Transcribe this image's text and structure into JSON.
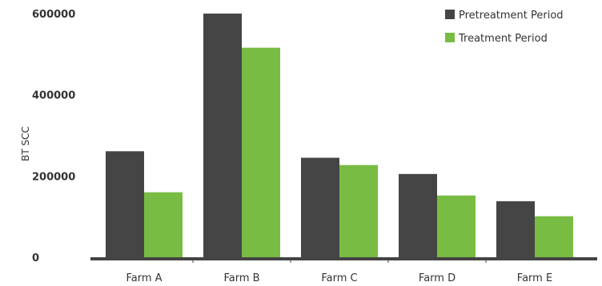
{
  "chart_data": {
    "type": "bar",
    "categories": [
      "Farm A",
      "Farm B",
      "Farm C",
      "Farm D",
      "Farm E"
    ],
    "series": [
      {
        "name": "Pretreatment Period",
        "color": "#454545",
        "values": [
          261000,
          600000,
          245000,
          205000,
          138000
        ]
      },
      {
        "name": "Treatment Period",
        "color": "#78bc43",
        "values": [
          160000,
          516000,
          227000,
          152000,
          101000
        ]
      }
    ],
    "title": "",
    "xlabel": "",
    "ylabel": "BT SCC",
    "ylim": [
      0,
      600000
    ],
    "yticks": [
      "0",
      "200000",
      "400000",
      "600000"
    ],
    "ytick_values": [
      0,
      200000,
      400000,
      600000
    ],
    "grid": false,
    "legend": "top-right"
  }
}
